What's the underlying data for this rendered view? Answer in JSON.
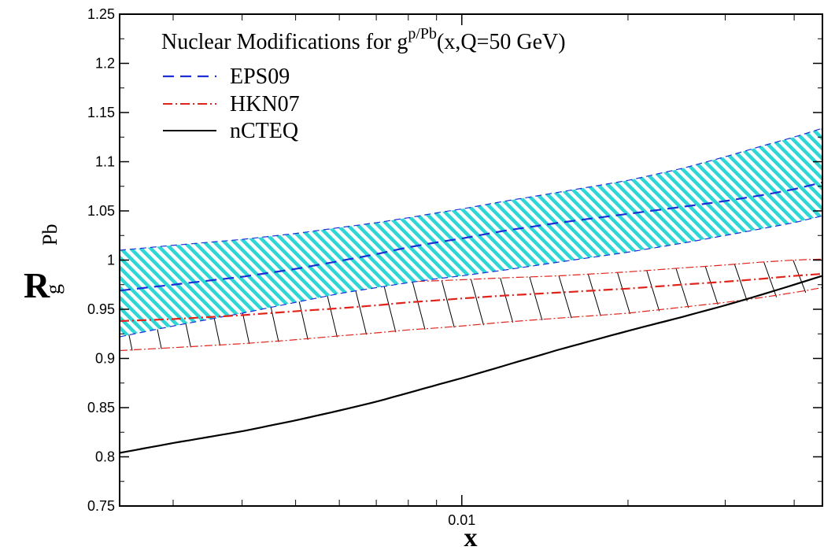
{
  "chart_data": {
    "type": "line",
    "title_parts": {
      "prefix": "Nuclear Modifications for g",
      "superscript": "p/Pb",
      "suffix": "(x,Q=50 GeV)"
    },
    "xlabel": "x",
    "ylabel": {
      "main": "R",
      "sub": "g",
      "sup": "Pb"
    },
    "x_scale": "log",
    "xlim": [
      0.0024,
      0.045
    ],
    "ylim": [
      0.75,
      1.25
    ],
    "x_major_ticks": [
      0.01
    ],
    "x_tick_labels": [
      "0.01"
    ],
    "x_minor_ticks": [
      0.003,
      0.004,
      0.005,
      0.006,
      0.007,
      0.008,
      0.009,
      0.02,
      0.03,
      0.04
    ],
    "y_ticks": [
      0.75,
      0.8,
      0.85,
      0.9,
      0.95,
      1,
      1.05,
      1.1,
      1.15,
      1.2,
      1.25
    ],
    "y_tick_labels": [
      "0.75",
      "0.8",
      "0.85",
      "0.9",
      "0.95",
      "1",
      "1.05",
      "1.1",
      "1.15",
      "1.2",
      "1.25"
    ],
    "grid": false,
    "legend_position": "top-left",
    "x": [
      0.0024,
      0.003,
      0.004,
      0.005,
      0.006,
      0.007,
      0.008,
      0.009,
      0.01,
      0.012,
      0.015,
      0.02,
      0.025,
      0.03,
      0.035,
      0.04,
      0.045
    ],
    "series": [
      {
        "name": "EPS09",
        "style": "dashed",
        "color": "#1f2fd6",
        "band_color": "#2ed6d6",
        "band_hatch": "diagonal-dense",
        "central": [
          0.969,
          0.975,
          0.983,
          0.991,
          0.999,
          1.006,
          1.013,
          1.018,
          1.022,
          1.03,
          1.038,
          1.047,
          1.054,
          1.06,
          1.066,
          1.072,
          1.079
        ],
        "lower": [
          0.922,
          0.933,
          0.946,
          0.957,
          0.966,
          0.972,
          0.977,
          0.981,
          0.984,
          0.99,
          0.998,
          1.008,
          1.017,
          1.025,
          1.032,
          1.038,
          1.045
        ],
        "upper": [
          1.01,
          1.015,
          1.021,
          1.027,
          1.033,
          1.038,
          1.043,
          1.048,
          1.052,
          1.06,
          1.069,
          1.081,
          1.093,
          1.105,
          1.116,
          1.125,
          1.134
        ]
      },
      {
        "name": "HKN07",
        "style": "dash-dot",
        "color": "#e0241c",
        "band_hatch": "sparse-black",
        "central": [
          0.938,
          0.94,
          0.944,
          0.948,
          0.951,
          0.954,
          0.957,
          0.959,
          0.961,
          0.964,
          0.967,
          0.971,
          0.975,
          0.978,
          0.981,
          0.984,
          0.986
        ],
        "lower": [
          0.908,
          0.911,
          0.915,
          0.919,
          0.923,
          0.926,
          0.929,
          0.931,
          0.933,
          0.937,
          0.941,
          0.946,
          0.952,
          0.957,
          0.962,
          0.967,
          0.972
        ],
        "upper": [
          0.97,
          0.972,
          0.974,
          0.975,
          0.976,
          0.977,
          0.978,
          0.979,
          0.98,
          0.982,
          0.984,
          0.988,
          0.992,
          0.995,
          0.998,
          1.0,
          1.001
        ]
      },
      {
        "name": "nCTEQ",
        "style": "solid",
        "color": "#000000",
        "central": [
          0.804,
          0.814,
          0.826,
          0.837,
          0.847,
          0.856,
          0.865,
          0.873,
          0.88,
          0.893,
          0.909,
          0.928,
          0.942,
          0.954,
          0.965,
          0.975,
          0.984
        ]
      }
    ]
  }
}
